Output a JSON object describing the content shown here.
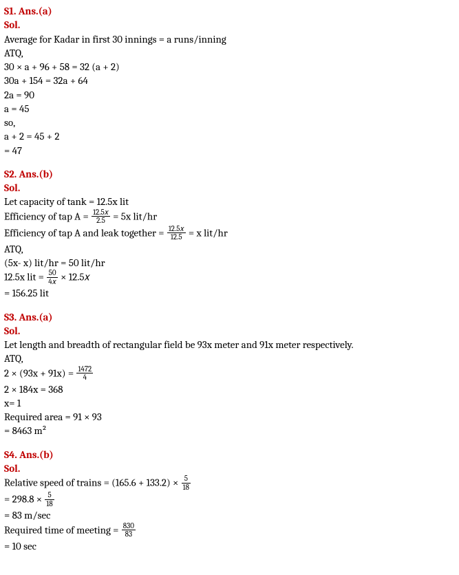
{
  "s1": {
    "heading": "S1. Ans.(a)",
    "sol": "Sol.",
    "l1": "Average for Kadar in first 30 innings = a runs/inning",
    "l2": "ATQ,",
    "l3": "30 × a + 96 + 58 = 32 (a + 2)",
    "l4": "30a + 154 = 32a + 64",
    "l5": "2a = 90",
    "l6": "a = 45",
    "l7": "so,",
    "l8": "a + 2 = 45 + 2",
    "l9": " = 47"
  },
  "s2": {
    "heading": "S2. Ans.(b)",
    "sol": "Sol.",
    "l1": "Let capacity of tank = 12.5x lit",
    "l2a": "Efficiency of tap A = ",
    "frac2_num": "12.5𝑥",
    "frac2_den": "2.5",
    "l2b": " = 5x lit/hr",
    "l3a": "Efficiency of tap A and leak together = ",
    "frac3_num": "12.5𝑥",
    "frac3_den": "12.5",
    "l3b": " = x lit/hr",
    "l4": "ATQ,",
    "l5": "(5x- x) lit/hr = 50 lit/hr",
    "l6a": "12.5x lit = ",
    "frac6_num": "50",
    "frac6_den": "4𝑥",
    "l6b": " × 12.5𝑥",
    "l7": "= 156.25 lit"
  },
  "s3": {
    "heading": "S3. Ans.(a)",
    "sol": "Sol.",
    "l1": "Let length and breadth of rectangular field be 93x meter and 91x meter respectively.",
    "l2": "ATQ,",
    "l3a": "2 × (93x + 91x) = ",
    "frac3_num": "1472",
    "frac3_den": "4",
    "l4": "2 × 184x = 368",
    "l5": "x= 1",
    "l6": "Required area = 91 × 93",
    "l7": "= 8463 m²"
  },
  "s4": {
    "heading": "S4. Ans.(b)",
    "sol": "Sol.",
    "l1a": "Relative speed of trains = (165.6 + 133.2) × ",
    "frac1_num": "5",
    "frac1_den": "18",
    "l2a": "= 298.8 × ",
    "frac2_num": "5",
    "frac2_den": "18",
    "l3": "= 83 m/sec",
    "l4a": "Required time of meeting = ",
    "frac4_num": "830",
    "frac4_den": "83",
    "l5": "= 10 sec"
  }
}
